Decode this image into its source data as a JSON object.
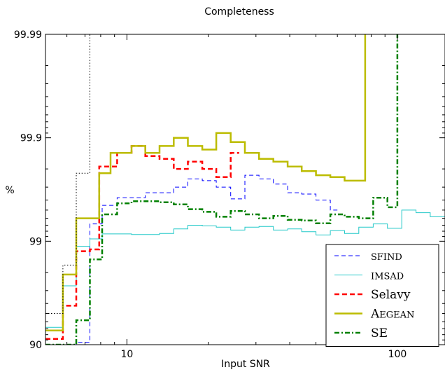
{
  "chart_data": {
    "type": "line",
    "title": "Completeness",
    "xlabel": "Input SNR",
    "ylabel": "%",
    "xscale": "log",
    "xlim": [
      5,
      150
    ],
    "yscale": "log10-complement-of-100",
    "ylim": [
      90,
      99.99
    ],
    "xticks": [
      {
        "value": 10,
        "label": "10"
      },
      {
        "value": 100,
        "label": "100"
      }
    ],
    "yticks": [
      {
        "value": 90,
        "label": "90"
      },
      {
        "value": 99,
        "label": "99"
      },
      {
        "value": 99.9,
        "label": "99.9"
      },
      {
        "value": 99.99,
        "label": "99.99"
      }
    ],
    "grid": false,
    "legend_position": "bottom-right",
    "series": [
      {
        "name": "SFIND",
        "legend_small_caps": true,
        "color": "#0000ff",
        "style": "dashed",
        "steps": [
          [
            5.0,
            90.0
          ],
          [
            6.5,
            90.5
          ],
          [
            7.3,
            99.32
          ],
          [
            8.1,
            99.55
          ],
          [
            9.2,
            99.62
          ],
          [
            10.4,
            99.62
          ],
          [
            11.7,
            99.66
          ],
          [
            13.2,
            99.66
          ],
          [
            14.9,
            99.7
          ],
          [
            16.8,
            99.75
          ],
          [
            19.0,
            99.74
          ],
          [
            21.4,
            99.7
          ],
          [
            24.2,
            99.61
          ],
          [
            27.3,
            99.77
          ],
          [
            30.8,
            99.75
          ],
          [
            34.8,
            99.72
          ],
          [
            39.3,
            99.66
          ],
          [
            44.3,
            99.65
          ],
          [
            50.0,
            99.6
          ],
          [
            56.5,
            99.5
          ],
          [
            60.0,
            99.5
          ]
        ]
      },
      {
        "name": "IMSAD",
        "legend_small_caps": true,
        "color": "#20c8c8",
        "style": "solid",
        "steps": [
          [
            5.0,
            93.2
          ],
          [
            5.8,
            97.3
          ],
          [
            6.5,
            98.88
          ],
          [
            7.3,
            99.05
          ],
          [
            8.1,
            99.15
          ],
          [
            9.2,
            99.15
          ],
          [
            10.4,
            99.14
          ],
          [
            11.7,
            99.14
          ],
          [
            13.2,
            99.16
          ],
          [
            14.9,
            99.24
          ],
          [
            16.8,
            99.3
          ],
          [
            19.0,
            99.29
          ],
          [
            21.4,
            99.27
          ],
          [
            24.2,
            99.22
          ],
          [
            27.3,
            99.27
          ],
          [
            30.8,
            99.28
          ],
          [
            34.8,
            99.22
          ],
          [
            39.3,
            99.24
          ],
          [
            44.3,
            99.19
          ],
          [
            50.0,
            99.13
          ],
          [
            56.5,
            99.21
          ],
          [
            63.8,
            99.16
          ],
          [
            72.0,
            99.27
          ],
          [
            81.4,
            99.32
          ],
          [
            91.9,
            99.25
          ],
          [
            103.8,
            99.5
          ],
          [
            117.2,
            99.47
          ],
          [
            132.3,
            99.42
          ],
          [
            150.0,
            99.42
          ]
        ]
      },
      {
        "name": "Selavy",
        "legend_small_caps": false,
        "color": "#ff0000",
        "style": "dashed-bold",
        "steps": [
          [
            5.0,
            91.2
          ],
          [
            5.8,
            95.8
          ],
          [
            6.5,
            98.75
          ],
          [
            7.3,
            98.8
          ],
          [
            7.9,
            99.81
          ],
          [
            9.2,
            99.86
          ],
          [
            10.4,
            99.88
          ],
          [
            11.7,
            99.85
          ],
          [
            13.2,
            99.84
          ],
          [
            14.9,
            99.8
          ],
          [
            16.8,
            99.83
          ],
          [
            19.0,
            99.8
          ],
          [
            21.4,
            99.76
          ],
          [
            24.2,
            99.86
          ],
          [
            26.0,
            99.86
          ]
        ]
      },
      {
        "name": "Aegean",
        "legend_small_caps": true,
        "color": "#bcbc00",
        "style": "solid-bold",
        "steps": [
          [
            5.0,
            92.7
          ],
          [
            5.8,
            97.9
          ],
          [
            6.5,
            99.4
          ],
          [
            7.3,
            99.4
          ],
          [
            7.9,
            99.78
          ],
          [
            8.7,
            99.86
          ],
          [
            10.4,
            99.88
          ],
          [
            11.7,
            99.86
          ],
          [
            13.2,
            99.88
          ],
          [
            14.9,
            99.9
          ],
          [
            16.8,
            99.88
          ],
          [
            19.0,
            99.87
          ],
          [
            21.4,
            99.91
          ],
          [
            24.2,
            99.89
          ],
          [
            27.3,
            99.86
          ],
          [
            30.8,
            99.84
          ],
          [
            34.8,
            99.83
          ],
          [
            39.3,
            99.81
          ],
          [
            44.3,
            99.79
          ],
          [
            50.0,
            99.77
          ],
          [
            56.5,
            99.76
          ],
          [
            63.8,
            99.74
          ],
          [
            76.0,
            99.74
          ],
          [
            76.0,
            99.99
          ]
        ]
      },
      {
        "name": "SE",
        "legend_small_caps": false,
        "color": "#008000",
        "style": "dashdot-bold",
        "steps": [
          [
            5.0,
            90.0
          ],
          [
            6.5,
            94.2
          ],
          [
            7.3,
            98.5
          ],
          [
            8.1,
            99.45
          ],
          [
            9.2,
            99.57
          ],
          [
            10.4,
            99.59
          ],
          [
            11.7,
            99.59
          ],
          [
            13.2,
            99.58
          ],
          [
            14.9,
            99.56
          ],
          [
            16.8,
            99.51
          ],
          [
            19.0,
            99.48
          ],
          [
            21.4,
            99.42
          ],
          [
            24.2,
            99.49
          ],
          [
            27.3,
            99.45
          ],
          [
            30.8,
            99.4
          ],
          [
            34.8,
            99.43
          ],
          [
            39.3,
            99.38
          ],
          [
            44.3,
            99.37
          ],
          [
            50.0,
            99.33
          ],
          [
            56.5,
            99.45
          ],
          [
            63.8,
            99.42
          ],
          [
            72.0,
            99.4
          ],
          [
            81.4,
            99.62
          ],
          [
            91.9,
            99.53
          ],
          [
            100.0,
            99.53
          ],
          [
            100.0,
            99.99
          ]
        ]
      },
      {
        "name": "",
        "legend_small_caps": false,
        "color": "#000000",
        "style": "dotted",
        "steps": [
          [
            5.0,
            95.0
          ],
          [
            5.8,
            98.3
          ],
          [
            6.5,
            99.78
          ],
          [
            7.3,
            99.93
          ],
          [
            7.3,
            99.99
          ]
        ]
      }
    ]
  }
}
